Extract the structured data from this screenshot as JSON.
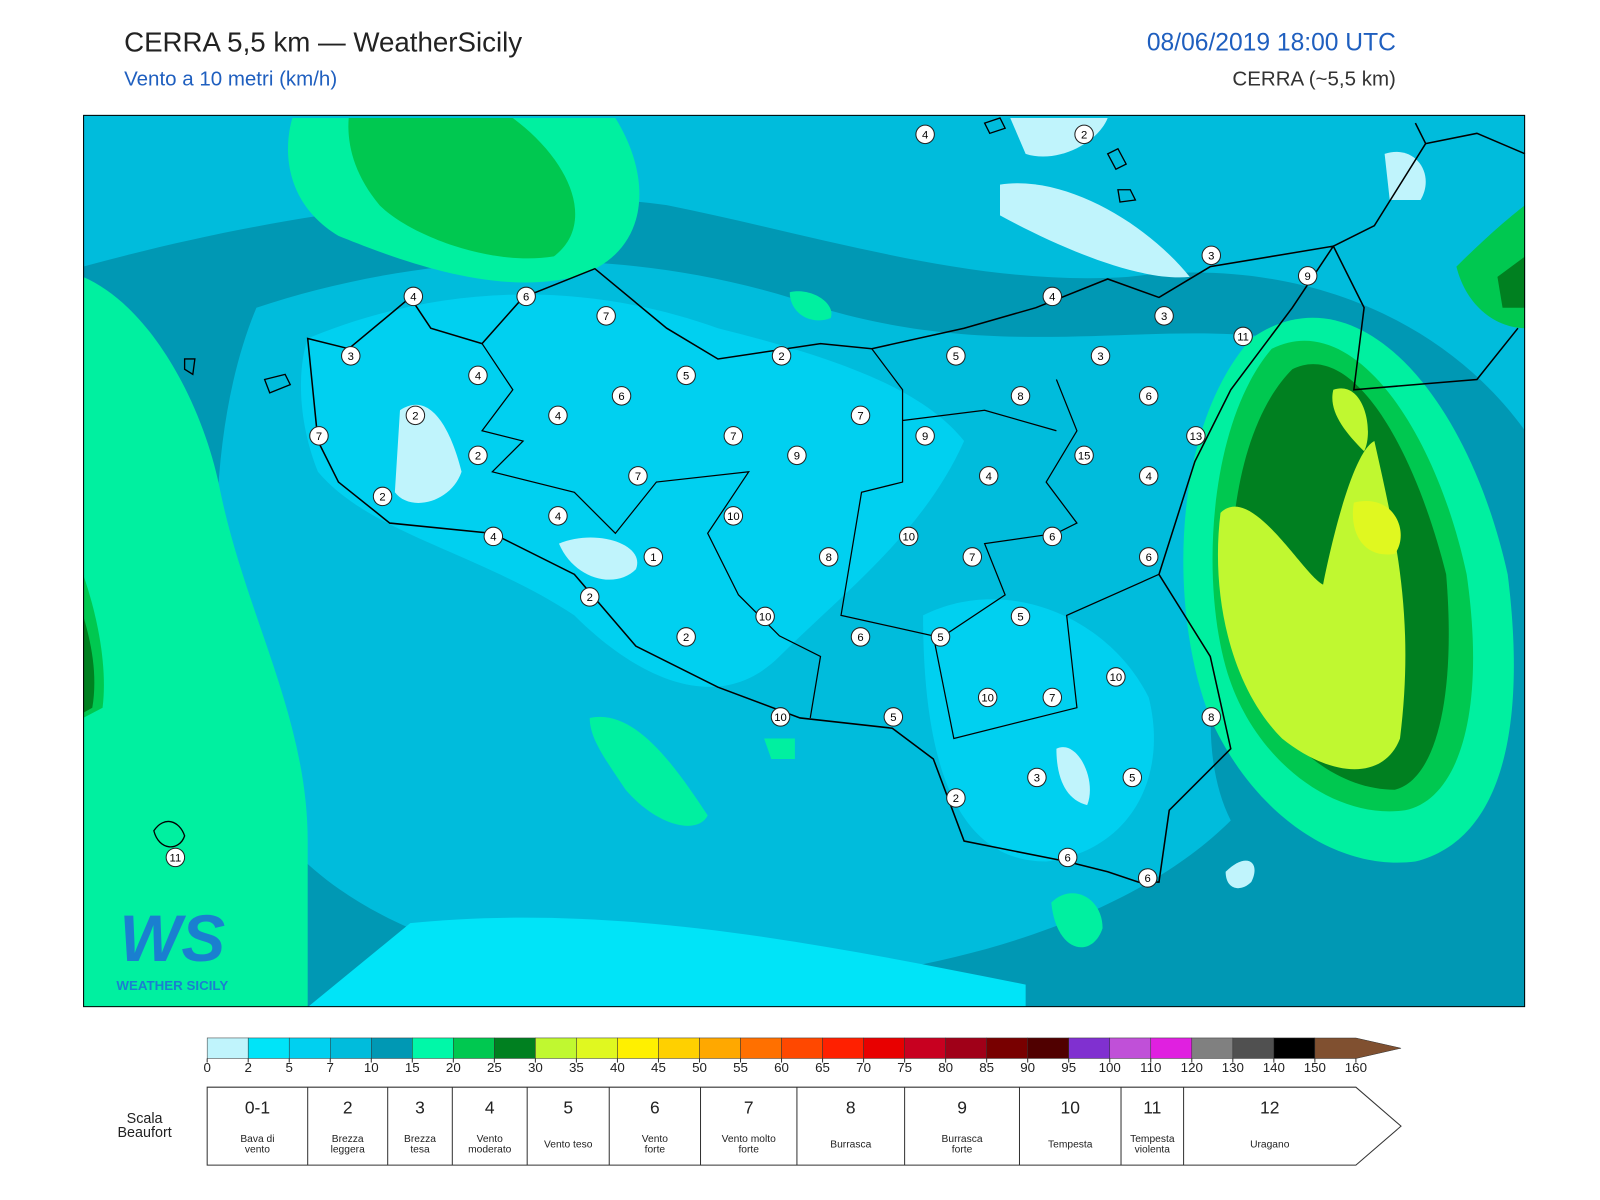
{
  "header": {
    "title": "CERRA 5,5 km — WeatherSicily",
    "subtitle": "Vento a 10 metri (km/h)",
    "datetime": "08/06/2019 18:00 UTC",
    "model": "CERRA (~5,5 km)"
  },
  "map": {
    "station_values": [
      4,
      2,
      4,
      6,
      7,
      3,
      9,
      4,
      3,
      11,
      3,
      2,
      5,
      3,
      4,
      5,
      6,
      8,
      6,
      2,
      4,
      7,
      7,
      7,
      9,
      13,
      2,
      9,
      15,
      7,
      4,
      4,
      2,
      4,
      10,
      4,
      10,
      6,
      1,
      8,
      7,
      6,
      2,
      5,
      10,
      2,
      6,
      5,
      10,
      10,
      7,
      10,
      5,
      8,
      3,
      5,
      2,
      6,
      6,
      11
    ]
  },
  "logo": {
    "mark": "WS",
    "name": "WEATHER SICILY"
  },
  "colorbar": {
    "ticks": [
      0,
      2,
      5,
      7,
      10,
      15,
      20,
      25,
      30,
      35,
      40,
      45,
      50,
      55,
      60,
      65,
      70,
      75,
      80,
      85,
      90,
      95,
      100,
      110,
      120,
      130,
      140,
      150,
      160
    ],
    "colors": [
      "#c0f4fc",
      "#00e4f8",
      "#00d0f0",
      "#00bcdc",
      "#0098b4",
      "#00f8a8",
      "#00c850",
      "#008020",
      "#c0f830",
      "#e0f820",
      "#fff000",
      "#ffd000",
      "#ffa800",
      "#ff7000",
      "#ff4800",
      "#ff2000",
      "#e80000",
      "#c80020",
      "#a00018",
      "#780000",
      "#500000",
      "#8030d0",
      "#c050d8",
      "#e020e0",
      "#808080",
      "#505050",
      "#000000",
      "#805030"
    ]
  },
  "beaufort": {
    "title": [
      "Scala",
      "Beaufort"
    ],
    "levels": [
      {
        "force": "0-1",
        "desc": [
          "Bava di",
          "vento"
        ]
      },
      {
        "force": 2,
        "desc": [
          "Brezza",
          "leggera"
        ]
      },
      {
        "force": 3,
        "desc": [
          "Brezza",
          "tesa"
        ]
      },
      {
        "force": 4,
        "desc": [
          "Vento",
          "moderato"
        ]
      },
      {
        "force": 5,
        "desc": [
          "Vento teso"
        ]
      },
      {
        "force": 6,
        "desc": [
          "Vento",
          "forte"
        ]
      },
      {
        "force": 7,
        "desc": [
          "Vento molto",
          "forte"
        ]
      },
      {
        "force": 8,
        "desc": [
          "Burrasca"
        ]
      },
      {
        "force": 9,
        "desc": [
          "Burrasca",
          "forte"
        ]
      },
      {
        "force": 10,
        "desc": [
          "Tempesta"
        ]
      },
      {
        "force": 11,
        "desc": [
          "Tempesta",
          "violenta"
        ]
      },
      {
        "force": 12,
        "desc": [
          "Uragano"
        ]
      }
    ]
  }
}
